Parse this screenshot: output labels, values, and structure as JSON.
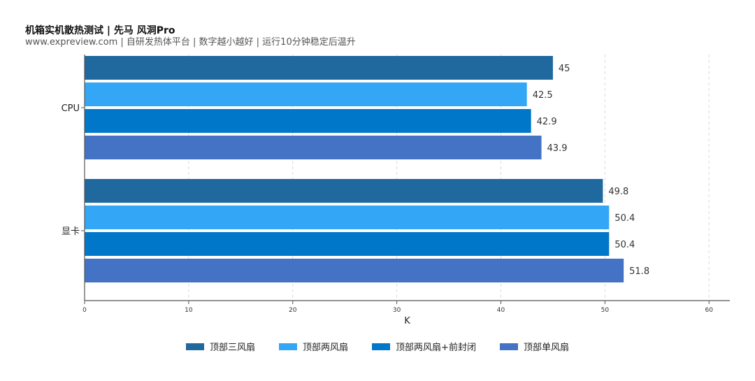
{
  "chart_data": {
    "type": "bar",
    "orientation": "horizontal",
    "title": "机箱实机散热测试 | 先马 风洞Pro",
    "subtitle": "www.expreview.com | 自研发热体平台 | 数字越小越好 | 运行10分钟稳定后温升",
    "categories": [
      "CPU",
      "显卡"
    ],
    "series": [
      {
        "name": "顶部三风扇",
        "color": "#20699e",
        "values": [
          45,
          49.8
        ],
        "labels": [
          "45",
          "49.8"
        ]
      },
      {
        "name": "顶部两风扇",
        "color": "#33a7f5",
        "values": [
          42.5,
          50.4
        ],
        "labels": [
          "42.5",
          "50.4"
        ]
      },
      {
        "name": "顶部两风扇+前封闭",
        "color": "#0077c8",
        "values": [
          42.9,
          50.4
        ],
        "labels": [
          "42.9",
          "50.4"
        ]
      },
      {
        "name": "顶部单风扇",
        "color": "#4472c4",
        "values": [
          43.9,
          51.8
        ],
        "labels": [
          "43.9",
          "51.8"
        ]
      }
    ],
    "xlabel": "K",
    "ylabel": "",
    "xlim": [
      0,
      62
    ],
    "xticks": [
      0,
      10,
      20,
      30,
      40,
      50,
      60
    ],
    "grid": "vertical-dashed",
    "legend_position": "bottom-center"
  }
}
